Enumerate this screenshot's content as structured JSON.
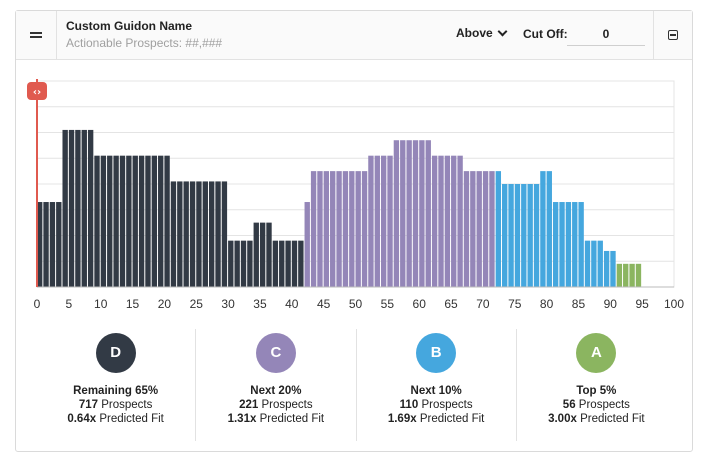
{
  "header": {
    "title": "Custom Guidon Name",
    "subtitle": "Actionable Prospects: ##,###",
    "position_select": "Above",
    "cutoff_label": "Cut Off:",
    "cutoff_value": "0",
    "menu_icon": "hamburger-icon",
    "collapse_icon": "minus-square-icon"
  },
  "slider": {
    "icon": "resize-arrows-icon",
    "value": 0
  },
  "chart_data": {
    "type": "bar",
    "x_ticks": [
      0,
      5,
      10,
      15,
      20,
      25,
      30,
      35,
      40,
      45,
      50,
      55,
      60,
      65,
      70,
      75,
      80,
      85,
      90,
      95,
      100
    ],
    "xlim": [
      0,
      100
    ],
    "ylim": [
      0,
      8
    ],
    "grid": true,
    "bin_width": 1,
    "values": [
      3.3,
      3.3,
      3.3,
      3.3,
      6.1,
      6.1,
      6.1,
      6.1,
      6.1,
      5.1,
      5.1,
      5.1,
      5.1,
      5.1,
      5.1,
      5.1,
      5.1,
      5.1,
      5.1,
      5.1,
      5.1,
      4.1,
      4.1,
      4.1,
      4.1,
      4.1,
      4.1,
      4.1,
      4.1,
      4.1,
      1.8,
      1.8,
      1.8,
      1.8,
      2.5,
      2.5,
      2.5,
      1.8,
      1.8,
      1.8,
      1.8,
      1.8,
      3.3,
      4.5,
      4.5,
      4.5,
      4.5,
      4.5,
      4.5,
      4.5,
      4.5,
      4.5,
      5.1,
      5.1,
      5.1,
      5.1,
      5.7,
      5.7,
      5.7,
      5.7,
      5.7,
      5.7,
      5.1,
      5.1,
      5.1,
      5.1,
      5.1,
      4.5,
      4.5,
      4.5,
      4.5,
      4.5,
      4.5,
      4.0,
      4.0,
      4.0,
      4.0,
      4.0,
      4.0,
      4.5,
      4.5,
      3.3,
      3.3,
      3.3,
      3.3,
      3.3,
      1.8,
      1.8,
      1.8,
      1.4,
      1.4,
      0.9,
      0.9,
      0.9,
      0.9
    ],
    "segments": [
      {
        "label": "D",
        "from": 0,
        "to": 42,
        "color": "#323a45"
      },
      {
        "label": "C",
        "from": 42,
        "to": 72,
        "color": "#9486b8"
      },
      {
        "label": "B",
        "from": 72,
        "to": 91,
        "color": "#45a7de"
      },
      {
        "label": "A",
        "from": 91,
        "to": 100,
        "color": "#8bb560"
      }
    ]
  },
  "tiers": [
    {
      "letter": "D",
      "color": "#323a45",
      "label": "Remaining 65%",
      "prospects": "717",
      "prospects_label": "Prospects",
      "fit": "0.64x",
      "fit_label": "Predicted Fit"
    },
    {
      "letter": "C",
      "color": "#9486b8",
      "label": "Next 20%",
      "prospects": "221",
      "prospects_label": "Prospects",
      "fit": "1.31x",
      "fit_label": "Predicted Fit"
    },
    {
      "letter": "B",
      "color": "#45a7de",
      "label": "Next 10%",
      "prospects": "110",
      "prospects_label": "Prospects",
      "fit": "1.69x",
      "fit_label": "Predicted Fit"
    },
    {
      "letter": "A",
      "color": "#8bb560",
      "label": "Top 5%",
      "prospects": "56",
      "prospects_label": "Prospects",
      "fit": "3.00x",
      "fit_label": "Predicted Fit"
    }
  ]
}
